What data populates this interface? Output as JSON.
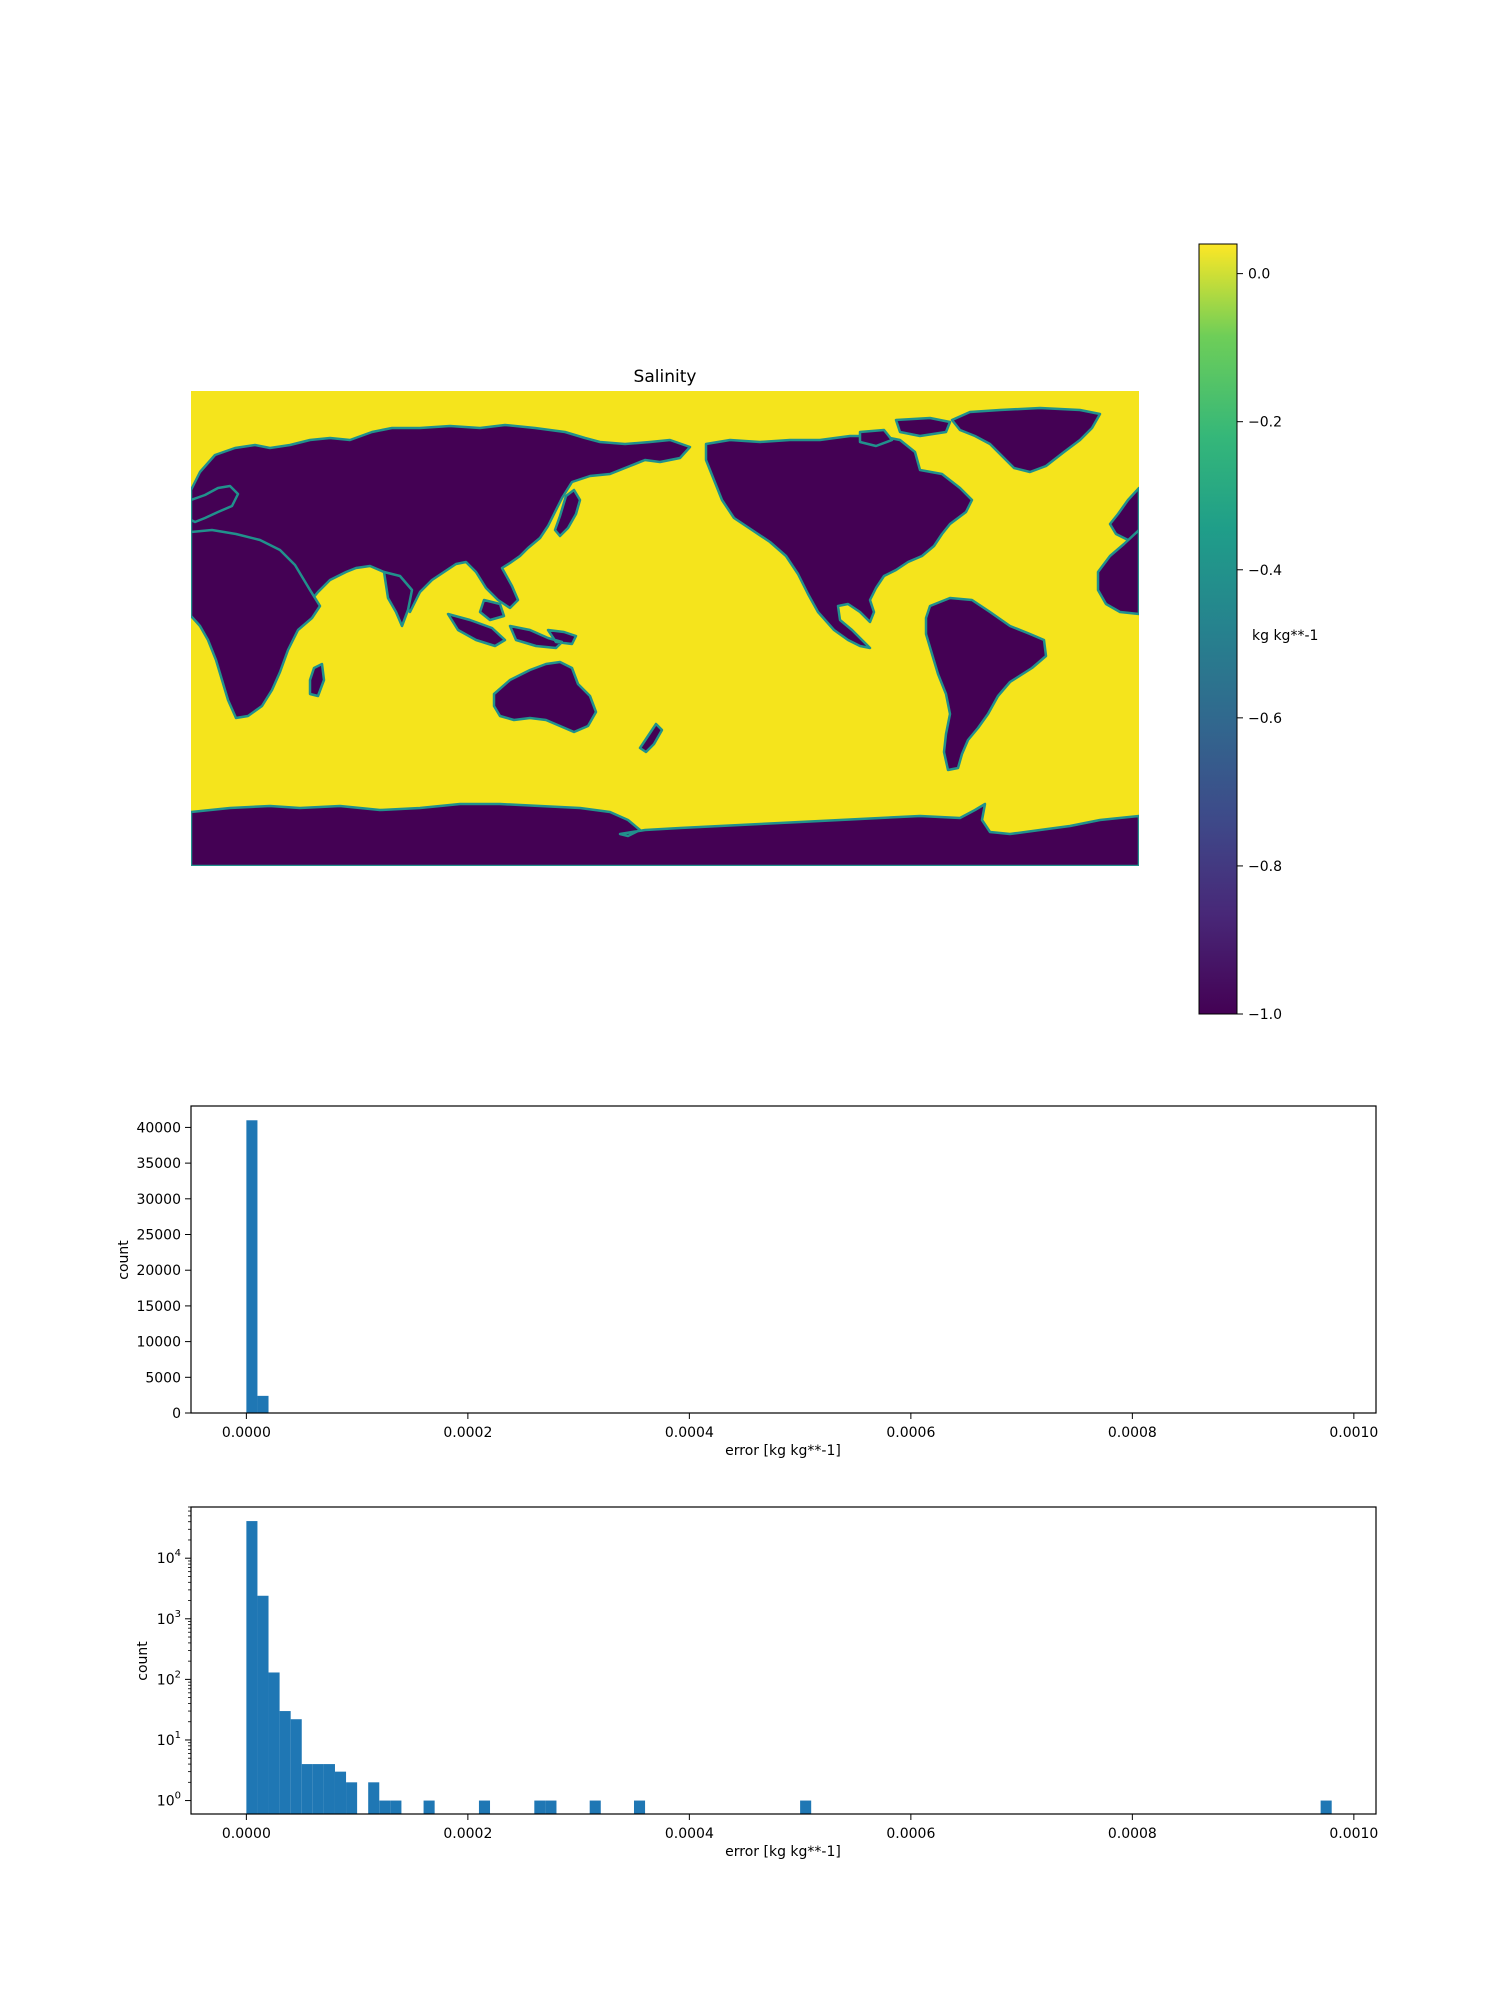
{
  "chart_data": [
    {
      "type": "heatmap",
      "title": "Salinity",
      "colorbar": {
        "label": "kg kg**-1",
        "colormap": "viridis",
        "range": [
          -1.0,
          0.04
        ],
        "ticks": [
          0.0,
          -0.2,
          -0.4,
          -0.6,
          -0.8,
          -1.0
        ],
        "tick_labels": [
          "0.0",
          "−0.2",
          "−0.4",
          "−0.6",
          "−0.8",
          "−1.0"
        ]
      },
      "values_description": "land = -1.0 (dark purple), ocean ≈ 0.0 (yellow)",
      "land_color": "#440154",
      "ocean_color": "#f5e41c",
      "coast_color": "#21918c"
    },
    {
      "type": "bar",
      "xlabel": "error [kg kg**-1]",
      "ylabel": "count",
      "yscale": "linear",
      "xlim": [
        -5e-05,
        0.00102
      ],
      "ylim": [
        0,
        43000
      ],
      "xticks": [
        0.0,
        0.0002,
        0.0004,
        0.0006,
        0.0008,
        0.001
      ],
      "xtick_labels": [
        "0.0000",
        "0.0002",
        "0.0004",
        "0.0006",
        "0.0008",
        "0.0010"
      ],
      "yticks": [
        0,
        5000,
        10000,
        15000,
        20000,
        25000,
        30000,
        35000,
        40000
      ],
      "ytick_labels": [
        "0",
        "5000",
        "10000",
        "15000",
        "20000",
        "25000",
        "30000",
        "35000",
        "40000"
      ],
      "bar_color": "#1f77b4",
      "bins": [
        {
          "x0": 0.0,
          "x1": 1e-05,
          "count": 41000
        },
        {
          "x0": 1e-05,
          "x1": 2e-05,
          "count": 2400
        }
      ]
    },
    {
      "type": "bar",
      "xlabel": "error [kg kg**-1]",
      "ylabel": "count",
      "yscale": "log",
      "xlim": [
        -5e-05,
        0.00102
      ],
      "ylim": [
        0.6,
        70000
      ],
      "xticks": [
        0.0,
        0.0002,
        0.0004,
        0.0006,
        0.0008,
        0.001
      ],
      "xtick_labels": [
        "0.0000",
        "0.0002",
        "0.0004",
        "0.0006",
        "0.0008",
        "0.0010"
      ],
      "yticks": [
        1,
        10,
        100,
        1000,
        10000
      ],
      "ytick_labels": [
        "10^0",
        "10^1",
        "10^2",
        "10^3",
        "10^4"
      ],
      "bar_color": "#1f77b4",
      "bins": [
        {
          "x0": 0.0,
          "x1": 1e-05,
          "count": 41000
        },
        {
          "x0": 1e-05,
          "x1": 2e-05,
          "count": 2400
        },
        {
          "x0": 2e-05,
          "x1": 3e-05,
          "count": 130
        },
        {
          "x0": 3e-05,
          "x1": 4e-05,
          "count": 30
        },
        {
          "x0": 4e-05,
          "x1": 5e-05,
          "count": 22
        },
        {
          "x0": 5e-05,
          "x1": 6e-05,
          "count": 4
        },
        {
          "x0": 6e-05,
          "x1": 7e-05,
          "count": 4
        },
        {
          "x0": 7e-05,
          "x1": 8e-05,
          "count": 4
        },
        {
          "x0": 8e-05,
          "x1": 9e-05,
          "count": 3
        },
        {
          "x0": 9e-05,
          "x1": 0.0001,
          "count": 2
        },
        {
          "x0": 0.00011,
          "x1": 0.00012,
          "count": 2
        },
        {
          "x0": 0.00012,
          "x1": 0.00013,
          "count": 1
        },
        {
          "x0": 0.00013,
          "x1": 0.00014,
          "count": 1
        },
        {
          "x0": 0.00016,
          "x1": 0.00017,
          "count": 1
        },
        {
          "x0": 0.00021,
          "x1": 0.00022,
          "count": 1
        },
        {
          "x0": 0.00026,
          "x1": 0.00027,
          "count": 1
        },
        {
          "x0": 0.00027,
          "x1": 0.00028,
          "count": 1
        },
        {
          "x0": 0.00031,
          "x1": 0.00032,
          "count": 1
        },
        {
          "x0": 0.00035,
          "x1": 0.00036,
          "count": 1
        },
        {
          "x0": 0.0005,
          "x1": 0.00051,
          "count": 1
        },
        {
          "x0": 0.00097,
          "x1": 0.00098,
          "count": 1
        }
      ]
    }
  ]
}
